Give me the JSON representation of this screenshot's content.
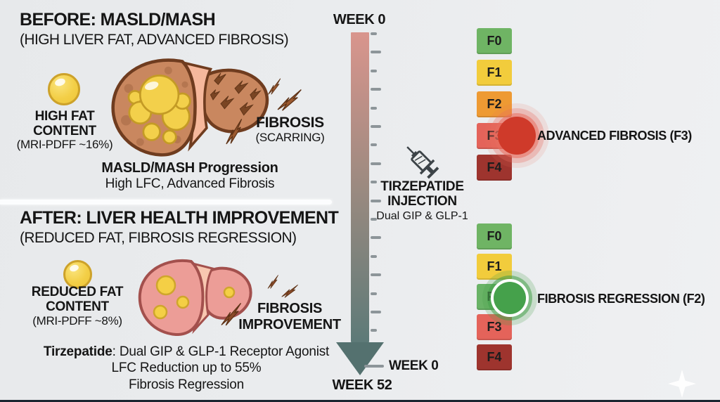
{
  "before": {
    "title": "BEFORE: MASLD/MASH",
    "subtitle": "(HIGH LIVER FAT, ADVANCED FIBROSIS)",
    "fat_label": "HIGH FAT CONTENT",
    "fat_detail": "(MRI-PDFF ~16%)",
    "fibrosis_label": "FIBROSIS",
    "fibrosis_detail": "(SCARRING)",
    "caption_title": "MASLD/MASH Progression",
    "caption_sub": "High LFC, Advanced Fibrosis"
  },
  "after": {
    "title": "AFTER: LIVER HEALTH IMPROVEMENT",
    "subtitle": "(REDUCED FAT, FIBROSIS REGRESSION)",
    "fat_label": "REDUCED FAT CONTENT",
    "fat_detail": "(MRI-PDFF ~8%)",
    "fibrosis_label": "FIBROSIS IMPROVEMENT"
  },
  "summary": {
    "line1_bold": "Tirzepatide",
    "line1_rest": ": Dual GIP & GLP-1 Receptor Agonist",
    "line2": "LFC Reduction up to 55%",
    "line3": "Fibrosis Regression"
  },
  "timeline": {
    "top_label": "WEEK 0",
    "bottom_tick_label": "WEEK 0",
    "end_label": "WEEK 52",
    "tick_count": 17,
    "bar_top_color": "#d9958d",
    "bar_mid_color": "#9b8a80",
    "bar_bottom_color": "#5d7a78",
    "arrow_color": "#54716f",
    "tick_color": "#8d9599"
  },
  "injection": {
    "title_line1": "TIRZEPATIDE",
    "title_line2": "INJECTION",
    "subtitle": "Dual GIP & GLP-1",
    "icon": "syringe-icon"
  },
  "scales": {
    "before": {
      "items": [
        {
          "label": "F0",
          "color": "#6fb464"
        },
        {
          "label": "F1",
          "color": "#f2cc3c"
        },
        {
          "label": "F2",
          "color": "#ee9a33"
        },
        {
          "label": "F3",
          "color": "#e4635a"
        },
        {
          "label": "F4",
          "color": "#9e342e"
        }
      ],
      "highlight_index": 3,
      "highlight_color": "#cf3a2a",
      "annotation": "ADVANCED FIBROSIS (F3)"
    },
    "after": {
      "items": [
        {
          "label": "F0",
          "color": "#6fb464"
        },
        {
          "label": "F1",
          "color": "#f2cc3c"
        },
        {
          "label": "F2",
          "color": "#69b366"
        },
        {
          "label": "F3",
          "color": "#e4635a"
        },
        {
          "label": "F4",
          "color": "#9e342e"
        }
      ],
      "highlight_index": 2,
      "highlight_color": "#45a14b",
      "annotation": "FIBROSIS REGRESSION (F2)"
    }
  },
  "icons": {
    "fat": "fat-droplet-icon",
    "scar": "scar-bolt-icon",
    "injection": "syringe-icon",
    "decoration": "sparkle-icon"
  }
}
